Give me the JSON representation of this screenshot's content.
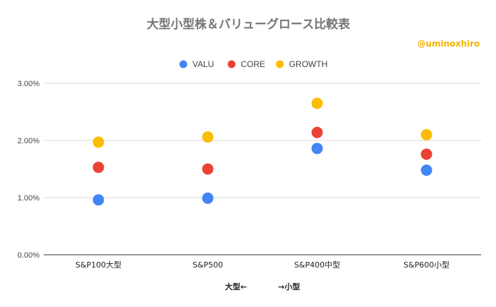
{
  "chart_data": {
    "type": "scatter",
    "title": "大型小型株＆バリューグロース比較表",
    "annotation": "@uminoxhiro",
    "xlabel": "大型←　　　　→小型",
    "ylabel": "",
    "categories": [
      "S&P100大型",
      "S&P500",
      "S&P400中型",
      "S&P600小型"
    ],
    "ylim": [
      0,
      3.0
    ],
    "yticks": [
      0,
      1,
      2,
      3
    ],
    "ytick_labels": [
      "0.00%",
      "1.00%",
      "2.00%",
      "3.00%"
    ],
    "grid": true,
    "legend_position": "top",
    "series": [
      {
        "name": "VALU",
        "color": "#4285f4",
        "values": [
          0.96,
          0.99,
          1.86,
          1.48
        ]
      },
      {
        "name": "CORE",
        "color": "#ea4335",
        "values": [
          1.53,
          1.5,
          2.14,
          1.76
        ]
      },
      {
        "name": "GROWTH",
        "color": "#fbbc04",
        "values": [
          1.97,
          2.06,
          2.65,
          2.1
        ]
      }
    ]
  }
}
